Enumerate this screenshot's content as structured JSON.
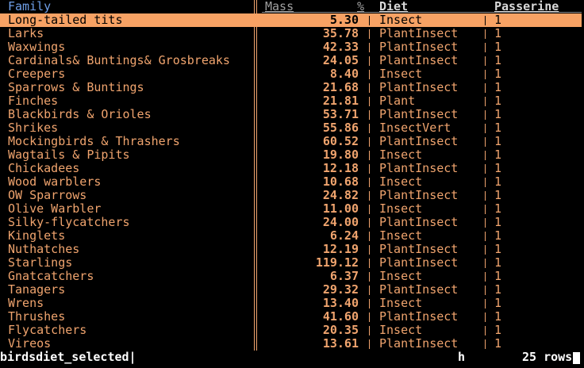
{
  "columns": [
    {
      "name": "Family"
    },
    {
      "name": "Mass",
      "type": "%"
    },
    {
      "name": "Diet"
    },
    {
      "name": "Passerine"
    }
  ],
  "rows": [
    [
      "Long-tailed tits",
      "5.30",
      "Insect",
      "1"
    ],
    [
      "Larks",
      "35.78",
      "PlantInsect",
      "1"
    ],
    [
      "Waxwings",
      "42.33",
      "PlantInsect",
      "1"
    ],
    [
      "Cardinals& Buntings& Grosbreaks",
      "24.05",
      "PlantInsect",
      "1"
    ],
    [
      "Creepers",
      "8.40",
      "Insect",
      "1"
    ],
    [
      "Sparrows & Buntings",
      "21.68",
      "PlantInsect",
      "1"
    ],
    [
      "Finches",
      "21.81",
      "Plant",
      "1"
    ],
    [
      "Blackbirds & Orioles",
      "53.71",
      "PlantInsect",
      "1"
    ],
    [
      "Shrikes",
      "55.86",
      "InsectVert",
      "1"
    ],
    [
      "Mockingbirds & Thrashers",
      "60.52",
      "PlantInsect",
      "1"
    ],
    [
      "Wagtails & Pipits",
      "19.80",
      "Insect",
      "1"
    ],
    [
      "Chickadees",
      "12.18",
      "PlantInsect",
      "1"
    ],
    [
      "Wood warblers",
      "10.68",
      "Insect",
      "1"
    ],
    [
      "OW Sparrows",
      "24.82",
      "PlantInsect",
      "1"
    ],
    [
      "Olive Warbler",
      "11.00",
      "Insect",
      "1"
    ],
    [
      "Silky-flycatchers",
      "24.00",
      "PlantInsect",
      "1"
    ],
    [
      "Kinglets",
      "6.24",
      "Insect",
      "1"
    ],
    [
      "Nuthatches",
      "12.19",
      "PlantInsect",
      "1"
    ],
    [
      "Starlings",
      "119.12",
      "PlantInsect",
      "1"
    ],
    [
      "Gnatcatchers",
      "6.37",
      "Insect",
      "1"
    ],
    [
      "Tanagers",
      "29.32",
      "PlantInsect",
      "1"
    ],
    [
      "Wrens",
      "13.40",
      "Insect",
      "1"
    ],
    [
      "Thrushes",
      "41.60",
      "PlantInsect",
      "1"
    ],
    [
      "Flycatchers",
      "20.35",
      "Insect",
      "1"
    ],
    [
      "Vireos",
      "13.61",
      "PlantInsect",
      "1"
    ]
  ],
  "status": {
    "sheet": "birdsdiet_selected|",
    "key": "h",
    "rows": "25 rows"
  }
}
